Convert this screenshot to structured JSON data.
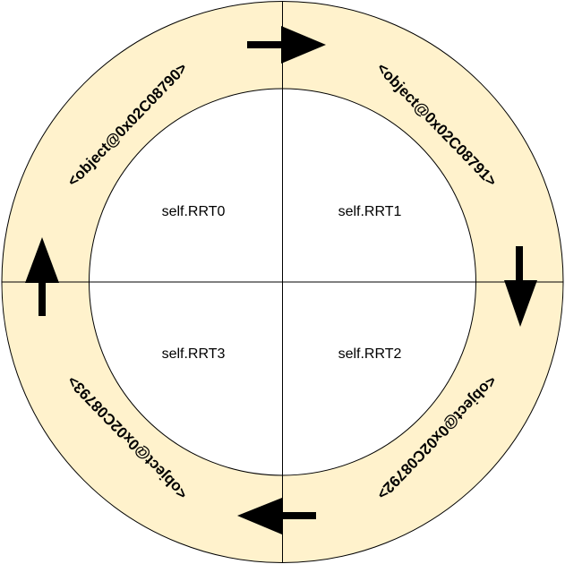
{
  "quadrants": [
    {
      "label": "self.RRT0"
    },
    {
      "label": "self.RRT1"
    },
    {
      "label": "self.RRT2"
    },
    {
      "label": "self.RRT3"
    }
  ],
  "ring_labels": [
    {
      "label": "<object@0x02C08790>"
    },
    {
      "label": "<object@0x02C08791>"
    },
    {
      "label": "<object@0x02C08792>"
    },
    {
      "label": "<object@0x02C08793>"
    }
  ],
  "colors": {
    "ring_fill": "#fff2cc",
    "inner_fill": "#ffffff",
    "stroke": "#000000"
  },
  "arrows": [
    {
      "direction": "right"
    },
    {
      "direction": "down"
    },
    {
      "direction": "left"
    },
    {
      "direction": "up"
    }
  ]
}
